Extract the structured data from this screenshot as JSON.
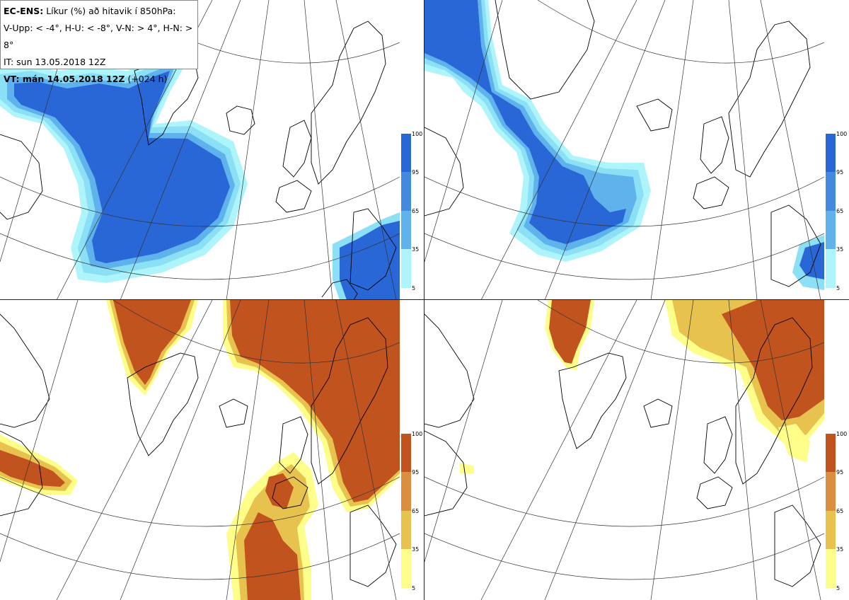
{
  "legend": {
    "model": "EC-ENS:",
    "title": "Líkur (%) að hitavik í 850hPa:",
    "categories": "V-Upp: < -4°, H-U: < -8°, V-N: > 4°, H-N: > 8°",
    "initial_time": "IT: sun 13.05.2018 12Z",
    "valid_label": "VT: mán 14.05.2018 12Z",
    "lead": " (+024 h)"
  },
  "colorbar_blue": {
    "labels": [
      "100",
      "95",
      "65",
      "35",
      "5"
    ],
    "colors": [
      "#2a67d6",
      "#4389de",
      "#5fb2ec",
      "#8ce0f6",
      "#aef4fb"
    ]
  },
  "colorbar_orange": {
    "labels": [
      "100",
      "95",
      "65",
      "35",
      "5"
    ],
    "colors": [
      "#c1531f",
      "#d98f3f",
      "#e8c24e",
      "#f5e87a",
      "#fdfd8a"
    ]
  },
  "panels": [
    {
      "id": "upper-left",
      "variable": "V-Upp",
      "palette": "blue"
    },
    {
      "id": "upper-right",
      "variable": "H-U",
      "palette": "blue"
    },
    {
      "id": "lower-left",
      "variable": "V-N",
      "palette": "orange"
    },
    {
      "id": "lower-right",
      "variable": "H-N",
      "palette": "orange"
    }
  ]
}
